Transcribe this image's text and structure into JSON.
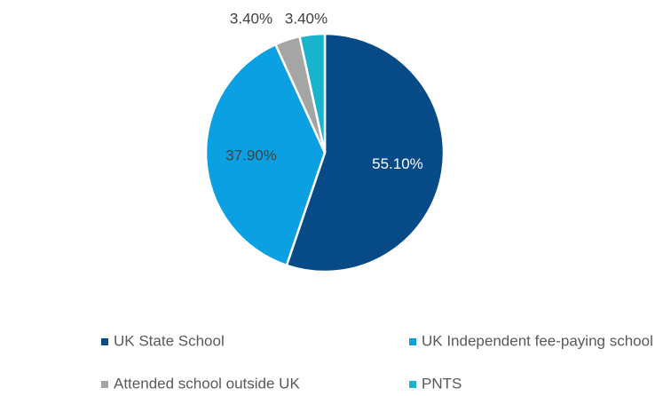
{
  "chart_data": {
    "type": "pie",
    "categories": [
      "UK State School",
      "UK Independent fee-paying school",
      "Attended school outside UK",
      "PNTS"
    ],
    "values": [
      55.1,
      37.9,
      3.4,
      3.4
    ],
    "value_labels": [
      "55.10%",
      "37.90%",
      "3.40%",
      "3.40%"
    ],
    "colors": [
      "#064a88",
      "#0aa0e1",
      "#a5a5a5",
      "#18b4cc"
    ],
    "legend": "bottom"
  }
}
